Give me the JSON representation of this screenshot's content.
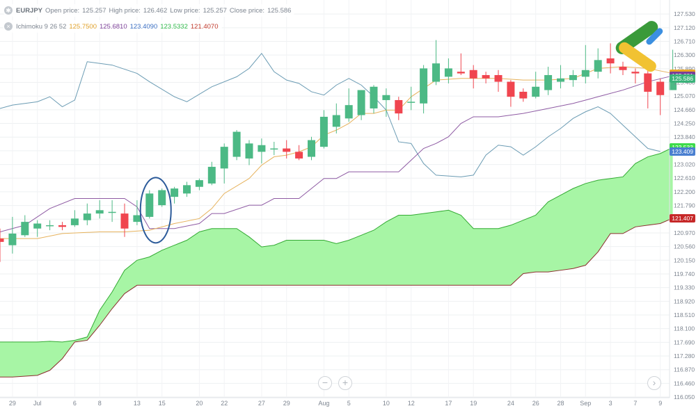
{
  "legend": {
    "symbol": "EURJPY",
    "open_label": "Open price:",
    "open": "125.257",
    "high_label": "High price:",
    "high": "126.462",
    "low_label": "Low price:",
    "low": "125.257",
    "close_label": "Close price:",
    "close": "125.586",
    "indicator": "Ichimoku 9 26 52",
    "ind_values": [
      {
        "value": "125.7500",
        "color": "#e0a12a"
      },
      {
        "value": "125.6810",
        "color": "#7b3f97"
      },
      {
        "value": "123.4090",
        "color": "#3b6fc2"
      },
      {
        "value": "123.5332",
        "color": "#2fb84a"
      },
      {
        "value": "121.4070",
        "color": "#c0392b"
      }
    ]
  },
  "price_tags": [
    {
      "value": "125.750",
      "price": 125.75,
      "color": "#e9a623"
    },
    {
      "value": "125.681",
      "price": 125.681,
      "color": "#7b3f97"
    },
    {
      "value": "125.586",
      "price": 125.586,
      "color": "#3bb37a"
    },
    {
      "value": "123.533",
      "price": 123.533,
      "color": "#3ddc4a"
    },
    {
      "value": "123.409",
      "price": 123.409,
      "color": "#4a7fd0"
    },
    {
      "value": "121.407",
      "price": 121.407,
      "color": "#c62828"
    }
  ],
  "zoom": {
    "minus": "−",
    "plus": "+",
    "next": "›"
  },
  "chart_data": {
    "type": "candlestick",
    "colors": {
      "up": "#4cb985",
      "down": "#f0454f",
      "tenkan": "#e6b25c",
      "kijun": "#8e5aa3",
      "chikou": "#6a9bb3",
      "cloud_up": "#a7f5a5",
      "cloud_down": "#ffaaaa",
      "senkou_a": "#33aa33",
      "senkou_b": "#8b2d2d"
    },
    "ylim": [
      116.03,
      127.95
    ],
    "y_ticks": [
      "127.530",
      "127.120",
      "126.710",
      "126.300",
      "125.890",
      "125.480",
      "125.070",
      "124.660",
      "124.250",
      "123.840",
      "123.430",
      "123.020",
      "122.610",
      "122.200",
      "121.790",
      "121.380",
      "120.970",
      "120.560",
      "120.150",
      "119.740",
      "119.330",
      "118.920",
      "118.510",
      "118.100",
      "117.690",
      "117.280",
      "116.870",
      "116.460",
      "116.050"
    ],
    "x_ticks": [
      {
        "label": "29",
        "i": 1
      },
      {
        "label": "Jul",
        "i": 3
      },
      {
        "label": "6",
        "i": 6
      },
      {
        "label": "8",
        "i": 8
      },
      {
        "label": "13",
        "i": 11
      },
      {
        "label": "15",
        "i": 13
      },
      {
        "label": "20",
        "i": 16
      },
      {
        "label": "22",
        "i": 18
      },
      {
        "label": "27",
        "i": 21
      },
      {
        "label": "29",
        "i": 23
      },
      {
        "label": "Aug",
        "i": 26
      },
      {
        "label": "5",
        "i": 28
      },
      {
        "label": "10",
        "i": 31
      },
      {
        "label": "12",
        "i": 33
      },
      {
        "label": "17",
        "i": 36
      },
      {
        "label": "19",
        "i": 38
      },
      {
        "label": "24",
        "i": 41
      },
      {
        "label": "26",
        "i": 43
      },
      {
        "label": "28",
        "i": 45
      },
      {
        "label": "Sep",
        "i": 47
      },
      {
        "label": "3",
        "i": 49
      },
      {
        "label": "7",
        "i": 51
      },
      {
        "label": "9",
        "i": 53
      }
    ],
    "candles": [
      {
        "o": 120.8,
        "h": 121.1,
        "l": 120.1,
        "c": 120.7
      },
      {
        "o": 120.6,
        "h": 121.45,
        "l": 120.35,
        "c": 120.95
      },
      {
        "o": 120.9,
        "h": 121.5,
        "l": 120.85,
        "c": 121.3
      },
      {
        "o": 121.1,
        "h": 121.35,
        "l": 120.85,
        "c": 121.25
      },
      {
        "o": 121.2,
        "h": 121.35,
        "l": 121.05,
        "c": 121.2
      },
      {
        "o": 121.2,
        "h": 121.3,
        "l": 121.05,
        "c": 121.15
      },
      {
        "o": 121.2,
        "h": 121.65,
        "l": 121.15,
        "c": 121.4
      },
      {
        "o": 121.35,
        "h": 121.85,
        "l": 121.2,
        "c": 121.55
      },
      {
        "o": 121.55,
        "h": 121.95,
        "l": 121.4,
        "c": 121.65
      },
      {
        "o": 121.6,
        "h": 121.95,
        "l": 121.3,
        "c": 121.6
      },
      {
        "o": 121.55,
        "h": 121.85,
        "l": 120.85,
        "c": 121.1
      },
      {
        "o": 121.3,
        "h": 121.95,
        "l": 121.2,
        "c": 121.5
      },
      {
        "o": 121.45,
        "h": 122.25,
        "l": 121.4,
        "c": 122.15
      },
      {
        "o": 121.8,
        "h": 122.3,
        "l": 121.75,
        "c": 122.25
      },
      {
        "o": 122.05,
        "h": 122.35,
        "l": 121.85,
        "c": 122.3
      },
      {
        "o": 122.15,
        "h": 122.5,
        "l": 122.05,
        "c": 122.4
      },
      {
        "o": 122.35,
        "h": 122.6,
        "l": 122.25,
        "c": 122.55
      },
      {
        "o": 122.45,
        "h": 123.1,
        "l": 122.4,
        "c": 122.95
      },
      {
        "o": 122.9,
        "h": 123.65,
        "l": 122.45,
        "c": 123.55
      },
      {
        "o": 123.25,
        "h": 124.05,
        "l": 123.15,
        "c": 124.0
      },
      {
        "o": 123.2,
        "h": 123.75,
        "l": 123.0,
        "c": 123.65
      },
      {
        "o": 123.4,
        "h": 123.8,
        "l": 123.05,
        "c": 123.6
      },
      {
        "o": 123.5,
        "h": 123.7,
        "l": 123.3,
        "c": 123.5
      },
      {
        "o": 123.5,
        "h": 123.75,
        "l": 123.2,
        "c": 123.4
      },
      {
        "o": 123.4,
        "h": 123.6,
        "l": 123.15,
        "c": 123.2
      },
      {
        "o": 123.25,
        "h": 123.85,
        "l": 123.15,
        "c": 123.75
      },
      {
        "o": 123.55,
        "h": 124.65,
        "l": 123.5,
        "c": 124.45
      },
      {
        "o": 124.15,
        "h": 124.85,
        "l": 123.95,
        "c": 124.5
      },
      {
        "o": 124.4,
        "h": 125.3,
        "l": 124.3,
        "c": 124.8
      },
      {
        "o": 124.5,
        "h": 125.25,
        "l": 124.35,
        "c": 125.25
      },
      {
        "o": 124.7,
        "h": 125.4,
        "l": 124.55,
        "c": 125.35
      },
      {
        "o": 124.95,
        "h": 125.3,
        "l": 124.45,
        "c": 125.1
      },
      {
        "o": 124.95,
        "h": 125.05,
        "l": 124.35,
        "c": 124.55
      },
      {
        "o": 124.9,
        "h": 125.35,
        "l": 124.65,
        "c": 124.9
      },
      {
        "o": 124.85,
        "h": 126.0,
        "l": 124.55,
        "c": 125.9
      },
      {
        "o": 125.5,
        "h": 126.75,
        "l": 125.4,
        "c": 126.05
      },
      {
        "o": 125.65,
        "h": 126.2,
        "l": 125.45,
        "c": 125.9
      },
      {
        "o": 125.8,
        "h": 126.35,
        "l": 125.7,
        "c": 125.75
      },
      {
        "o": 125.85,
        "h": 126.0,
        "l": 125.3,
        "c": 125.6
      },
      {
        "o": 125.7,
        "h": 125.8,
        "l": 125.45,
        "c": 125.6
      },
      {
        "o": 125.7,
        "h": 125.85,
        "l": 125.2,
        "c": 125.5
      },
      {
        "o": 125.5,
        "h": 125.55,
        "l": 124.75,
        "c": 125.05
      },
      {
        "o": 125.2,
        "h": 125.3,
        "l": 124.9,
        "c": 125.0
      },
      {
        "o": 125.05,
        "h": 125.8,
        "l": 125.0,
        "c": 125.35
      },
      {
        "o": 125.25,
        "h": 125.95,
        "l": 125.1,
        "c": 125.7
      },
      {
        "o": 125.5,
        "h": 126.0,
        "l": 125.3,
        "c": 125.6
      },
      {
        "o": 125.55,
        "h": 125.85,
        "l": 125.35,
        "c": 125.7
      },
      {
        "o": 125.65,
        "h": 126.6,
        "l": 125.45,
        "c": 125.85
      },
      {
        "o": 125.8,
        "h": 126.5,
        "l": 125.6,
        "c": 126.15
      },
      {
        "o": 126.2,
        "h": 126.65,
        "l": 125.75,
        "c": 126.05
      },
      {
        "o": 125.95,
        "h": 126.1,
        "l": 125.7,
        "c": 125.85
      },
      {
        "o": 125.8,
        "h": 125.9,
        "l": 125.45,
        "c": 125.75
      },
      {
        "o": 125.75,
        "h": 125.95,
        "l": 124.7,
        "c": 125.2
      },
      {
        "o": 125.5,
        "h": 125.6,
        "l": 124.5,
        "c": 125.1
      },
      {
        "o": 125.25,
        "h": 126.46,
        "l": 125.25,
        "c": 125.59
      }
    ],
    "tenkan": [
      [
        0,
        120.8
      ],
      [
        3,
        120.8
      ],
      [
        5,
        120.95
      ],
      [
        8,
        121.0
      ],
      [
        10,
        121.0
      ],
      [
        12,
        121.05
      ],
      [
        14,
        121.25
      ],
      [
        16,
        121.4
      ],
      [
        17,
        121.7
      ],
      [
        18,
        122.15
      ],
      [
        20,
        122.6
      ],
      [
        21,
        123.0
      ],
      [
        22,
        123.25
      ],
      [
        23,
        123.3
      ],
      [
        24,
        123.4
      ],
      [
        25,
        123.55
      ],
      [
        26,
        123.9
      ],
      [
        27,
        124.05
      ],
      [
        28,
        124.25
      ],
      [
        29,
        124.55
      ],
      [
        30,
        124.55
      ],
      [
        31,
        124.65
      ],
      [
        32,
        124.65
      ],
      [
        33,
        125.05
      ],
      [
        34,
        125.3
      ],
      [
        35,
        125.55
      ],
      [
        37,
        125.6
      ],
      [
        40,
        125.6
      ],
      [
        42,
        125.55
      ],
      [
        44,
        125.55
      ],
      [
        46,
        125.6
      ],
      [
        48,
        125.9
      ],
      [
        50,
        125.95
      ],
      [
        52,
        125.9
      ],
      [
        54,
        125.75
      ]
    ],
    "kijun": [
      [
        0,
        121.0
      ],
      [
        2,
        121.2
      ],
      [
        4,
        121.7
      ],
      [
        6,
        122.0
      ],
      [
        8,
        122.0
      ],
      [
        10,
        122.0
      ],
      [
        11,
        121.75
      ],
      [
        12,
        121.1
      ],
      [
        14,
        121.1
      ],
      [
        16,
        121.25
      ],
      [
        17,
        121.55
      ],
      [
        18,
        121.55
      ],
      [
        20,
        121.8
      ],
      [
        21,
        121.8
      ],
      [
        22,
        122.0
      ],
      [
        24,
        122.0
      ],
      [
        25,
        122.3
      ],
      [
        26,
        122.6
      ],
      [
        27,
        122.6
      ],
      [
        28,
        122.8
      ],
      [
        32,
        122.8
      ],
      [
        33,
        123.15
      ],
      [
        34,
        123.5
      ],
      [
        35,
        123.65
      ],
      [
        36,
        123.85
      ],
      [
        37,
        124.25
      ],
      [
        38,
        124.45
      ],
      [
        40,
        124.45
      ],
      [
        42,
        124.55
      ],
      [
        44,
        124.7
      ],
      [
        46,
        124.85
      ],
      [
        47,
        124.95
      ],
      [
        48,
        125.05
      ],
      [
        50,
        125.25
      ],
      [
        52,
        125.5
      ],
      [
        54,
        125.68
      ]
    ],
    "chikou": [
      [
        0,
        124.7
      ],
      [
        1,
        124.8
      ],
      [
        3,
        124.9
      ],
      [
        4,
        125.05
      ],
      [
        5,
        124.75
      ],
      [
        6,
        124.95
      ],
      [
        7,
        126.1
      ],
      [
        9,
        126.0
      ],
      [
        11,
        125.75
      ],
      [
        12,
        125.5
      ],
      [
        14,
        125.05
      ],
      [
        15,
        124.9
      ],
      [
        17,
        125.35
      ],
      [
        19,
        125.65
      ],
      [
        20,
        125.9
      ],
      [
        21,
        126.35
      ],
      [
        22,
        125.8
      ],
      [
        23,
        125.55
      ],
      [
        24,
        125.45
      ],
      [
        25,
        125.2
      ],
      [
        26,
        125.1
      ],
      [
        27,
        125.4
      ],
      [
        28,
        125.6
      ],
      [
        29,
        125.4
      ],
      [
        30,
        125.05
      ],
      [
        31,
        124.65
      ],
      [
        32,
        123.7
      ],
      [
        33,
        123.65
      ],
      [
        34,
        123.05
      ],
      [
        35,
        122.7
      ],
      [
        37,
        122.65
      ],
      [
        38,
        122.7
      ],
      [
        39,
        123.3
      ],
      [
        40,
        123.6
      ],
      [
        41,
        123.55
      ],
      [
        42,
        123.3
      ],
      [
        43,
        123.55
      ],
      [
        44,
        123.85
      ],
      [
        45,
        124.1
      ],
      [
        46,
        124.4
      ],
      [
        47,
        124.6
      ],
      [
        48,
        124.75
      ],
      [
        49,
        124.55
      ],
      [
        50,
        124.2
      ],
      [
        51,
        123.85
      ],
      [
        52,
        123.5
      ],
      [
        53,
        123.41
      ]
    ],
    "senkou_a": [
      [
        -0.5,
        117.7
      ],
      [
        1,
        117.7
      ],
      [
        3,
        117.7
      ],
      [
        4,
        117.72
      ],
      [
        5,
        117.7
      ],
      [
        6,
        117.75
      ],
      [
        7,
        117.85
      ],
      [
        8,
        118.65
      ],
      [
        9,
        119.2
      ],
      [
        10,
        119.85
      ],
      [
        11,
        120.15
      ],
      [
        12,
        120.25
      ],
      [
        13,
        120.45
      ],
      [
        14,
        120.6
      ],
      [
        15,
        120.75
      ],
      [
        16,
        121.0
      ],
      [
        17,
        121.1
      ],
      [
        18,
        121.1
      ],
      [
        19,
        121.1
      ],
      [
        20,
        120.85
      ],
      [
        21,
        120.55
      ],
      [
        22,
        120.6
      ],
      [
        23,
        120.75
      ],
      [
        24,
        120.75
      ],
      [
        25,
        120.75
      ],
      [
        26,
        120.75
      ],
      [
        27,
        120.65
      ],
      [
        28,
        120.75
      ],
      [
        29,
        120.9
      ],
      [
        30,
        121.05
      ],
      [
        31,
        121.3
      ],
      [
        32,
        121.5
      ],
      [
        33,
        121.5
      ],
      [
        34,
        121.55
      ],
      [
        35,
        121.6
      ],
      [
        36,
        121.65
      ],
      [
        37,
        121.5
      ],
      [
        38,
        121.1
      ],
      [
        39,
        121.1
      ],
      [
        40,
        121.1
      ],
      [
        41,
        121.2
      ],
      [
        42,
        121.35
      ],
      [
        43,
        121.5
      ],
      [
        44,
        121.9
      ],
      [
        45,
        122.1
      ],
      [
        46,
        122.3
      ],
      [
        47,
        122.45
      ],
      [
        48,
        122.55
      ],
      [
        49,
        122.6
      ],
      [
        50,
        122.65
      ],
      [
        51,
        123.05
      ],
      [
        52,
        123.25
      ],
      [
        53,
        123.35
      ],
      [
        54,
        123.53
      ]
    ],
    "senkou_b": [
      [
        -0.5,
        116.65
      ],
      [
        1,
        116.65
      ],
      [
        3,
        116.7
      ],
      [
        4,
        116.85
      ],
      [
        5,
        117.2
      ],
      [
        6,
        117.7
      ],
      [
        7,
        117.75
      ],
      [
        8,
        118.2
      ],
      [
        9,
        118.7
      ],
      [
        10,
        119.15
      ],
      [
        11,
        119.4
      ],
      [
        12,
        119.4
      ],
      [
        16,
        119.4
      ],
      [
        20,
        119.4
      ],
      [
        24,
        119.4
      ],
      [
        28,
        119.4
      ],
      [
        32,
        119.4
      ],
      [
        36,
        119.4
      ],
      [
        40,
        119.4
      ],
      [
        41,
        119.4
      ],
      [
        42,
        119.75
      ],
      [
        43,
        119.8
      ],
      [
        44,
        119.8
      ],
      [
        45,
        119.85
      ],
      [
        46,
        119.9
      ],
      [
        47,
        120.0
      ],
      [
        48,
        120.4
      ],
      [
        49,
        120.95
      ],
      [
        50,
        120.95
      ],
      [
        51,
        121.15
      ],
      [
        52,
        121.2
      ],
      [
        53,
        121.25
      ],
      [
        54,
        121.41
      ]
    ],
    "annotation": {
      "shape": "ellipse",
      "around_index": 12
    }
  }
}
